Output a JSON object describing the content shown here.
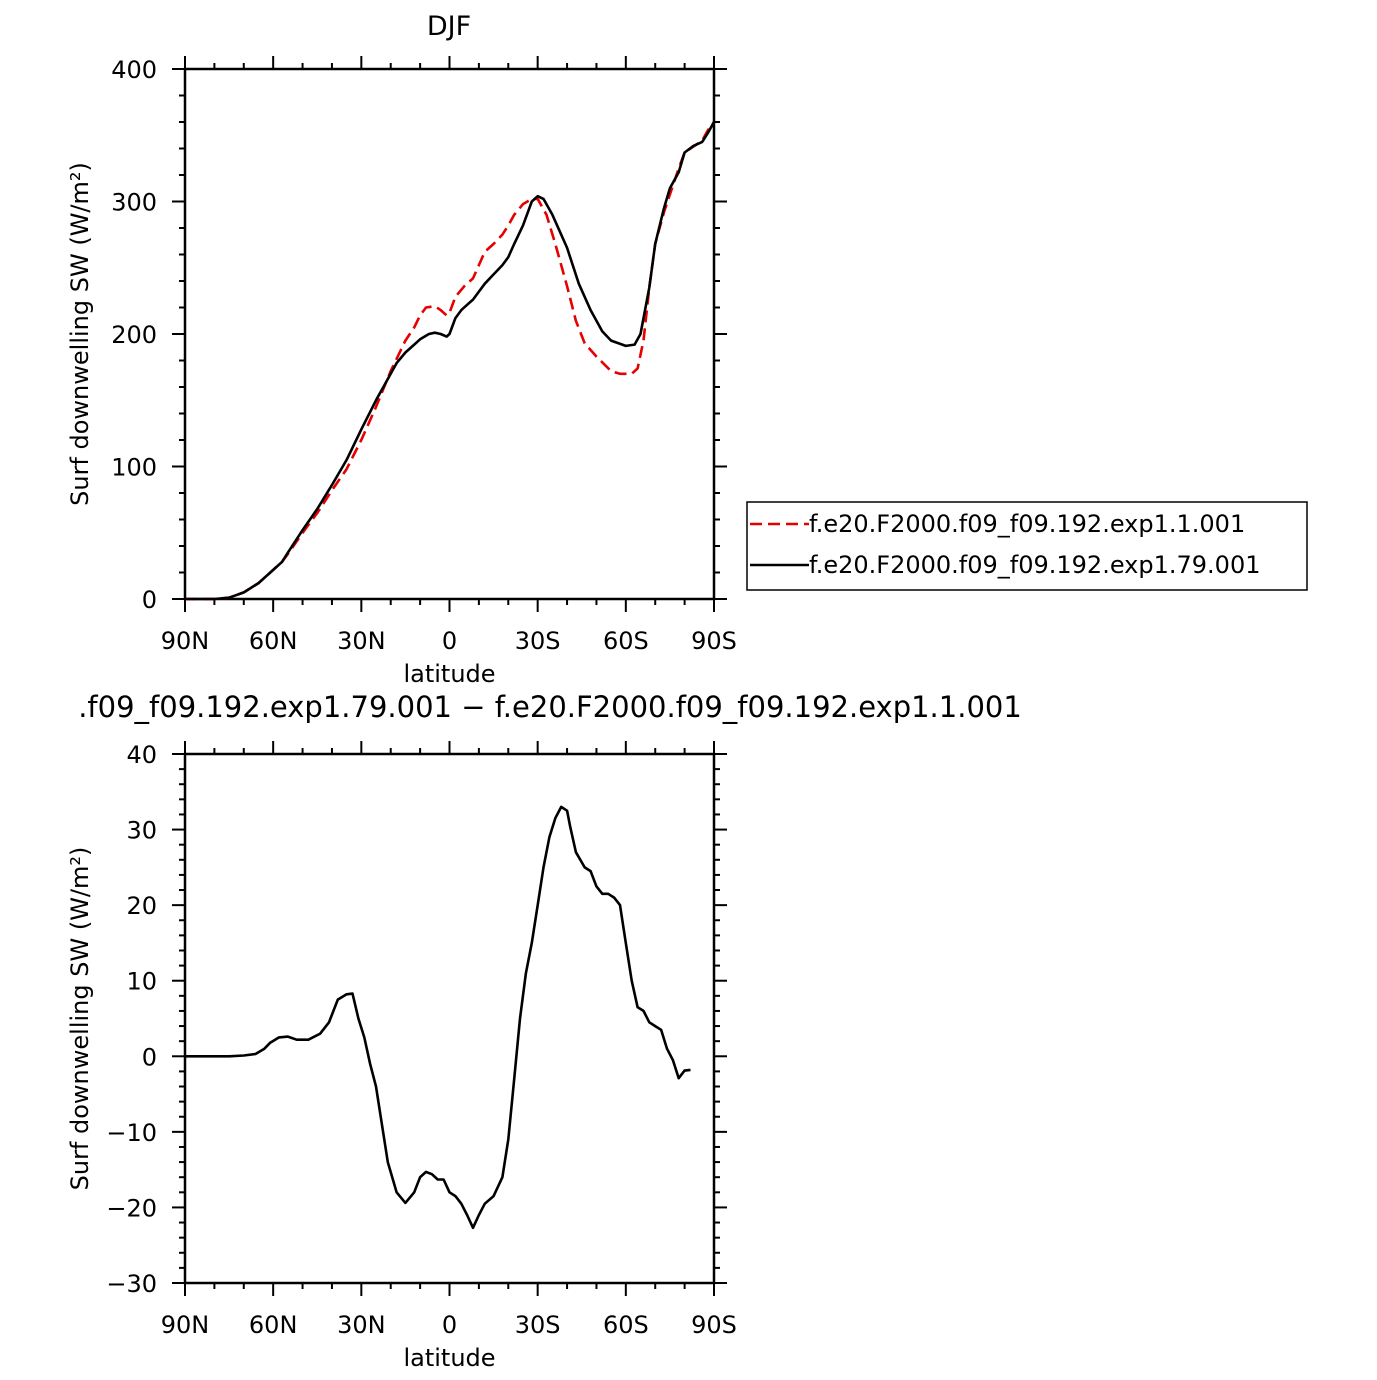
{
  "chart_data": [
    {
      "type": "line",
      "title": "DJF",
      "xlabel": "latitude",
      "ylabel": "Surf downwelling SW (W/m²)",
      "xlim": [
        -90,
        90
      ],
      "x_direction": "north-to-south (90N on left, 90S on right)",
      "ylim": [
        0,
        400
      ],
      "yticks": [
        0,
        100,
        200,
        300,
        400
      ],
      "xticks": [
        -90,
        -60,
        -30,
        0,
        30,
        60,
        90
      ],
      "xtick_labels": [
        "90N",
        "60N",
        "30N",
        "0",
        "30S",
        "60S",
        "90S"
      ],
      "legend_position": "right",
      "series": [
        {
          "name": "f.e20.F2000.f09_f09.192.exp1.1.001",
          "color": "#e60000",
          "style": "dashed",
          "points": [
            [
              -90,
              0
            ],
            [
              -80,
              0
            ],
            [
              -75,
              1
            ],
            [
              -70,
              5
            ],
            [
              -65,
              12
            ],
            [
              -60,
              22
            ],
            [
              -57,
              28
            ],
            [
              -55,
              34
            ],
            [
              -50,
              50
            ],
            [
              -45,
              65
            ],
            [
              -40,
              82
            ],
            [
              -35,
              98
            ],
            [
              -30,
              120
            ],
            [
              -25,
              145
            ],
            [
              -20,
              172
            ],
            [
              -15,
              195
            ],
            [
              -12,
              205
            ],
            [
              -10,
              214
            ],
            [
              -8,
              220
            ],
            [
              -5,
              221
            ],
            [
              -3,
              218
            ],
            [
              -1,
              214
            ],
            [
              0,
              216
            ],
            [
              2,
              228
            ],
            [
              5,
              236
            ],
            [
              8,
              242
            ],
            [
              10,
              252
            ],
            [
              12,
              262
            ],
            [
              15,
              268
            ],
            [
              18,
              275
            ],
            [
              20,
              282
            ],
            [
              22,
              290
            ],
            [
              25,
              298
            ],
            [
              28,
              302
            ],
            [
              30,
              302
            ],
            [
              33,
              290
            ],
            [
              36,
              268
            ],
            [
              40,
              236
            ],
            [
              43,
              210
            ],
            [
              46,
              193
            ],
            [
              50,
              183
            ],
            [
              55,
              172
            ],
            [
              58,
              170
            ],
            [
              62,
              170
            ],
            [
              64,
              174
            ],
            [
              66,
              195
            ],
            [
              68,
              235
            ],
            [
              70,
              268
            ],
            [
              73,
              292
            ],
            [
              76,
              312
            ],
            [
              78,
              325
            ],
            [
              80,
              337
            ],
            [
              84,
              343
            ],
            [
              86,
              346
            ],
            [
              88,
              354
            ],
            [
              90,
              360
            ]
          ]
        },
        {
          "name": "f.e20.F2000.f09_f09.192.exp1.79.001",
          "color": "#000000",
          "style": "solid",
          "points": [
            [
              -90,
              0
            ],
            [
              -80,
              0
            ],
            [
              -75,
              1
            ],
            [
              -70,
              5
            ],
            [
              -65,
              12
            ],
            [
              -60,
              22
            ],
            [
              -57,
              28
            ],
            [
              -55,
              35
            ],
            [
              -50,
              52
            ],
            [
              -45,
              68
            ],
            [
              -40,
              86
            ],
            [
              -35,
              105
            ],
            [
              -30,
              128
            ],
            [
              -25,
              150
            ],
            [
              -20,
              170
            ],
            [
              -18,
              178
            ],
            [
              -15,
              186
            ],
            [
              -12,
              192
            ],
            [
              -10,
              196
            ],
            [
              -7,
              200
            ],
            [
              -5,
              201
            ],
            [
              -3,
              200
            ],
            [
              -1,
              198
            ],
            [
              0,
              200
            ],
            [
              2,
              212
            ],
            [
              4,
              218
            ],
            [
              6,
              222
            ],
            [
              8,
              226
            ],
            [
              10,
              232
            ],
            [
              12,
              238
            ],
            [
              15,
              245
            ],
            [
              18,
              252
            ],
            [
              20,
              258
            ],
            [
              22,
              268
            ],
            [
              25,
              282
            ],
            [
              28,
              300
            ],
            [
              30,
              304
            ],
            [
              32,
              302
            ],
            [
              35,
              290
            ],
            [
              40,
              265
            ],
            [
              44,
              238
            ],
            [
              48,
              218
            ],
            [
              52,
              202
            ],
            [
              55,
              195
            ],
            [
              60,
              191
            ],
            [
              63,
              192
            ],
            [
              65,
              200
            ],
            [
              68,
              235
            ],
            [
              70,
              268
            ],
            [
              73,
              295
            ],
            [
              75,
              310
            ],
            [
              78,
              322
            ],
            [
              80,
              337
            ],
            [
              83,
              342
            ],
            [
              86,
              345
            ],
            [
              88,
              352
            ],
            [
              90,
              360
            ]
          ]
        }
      ]
    },
    {
      "type": "line",
      "title": ".f09_f09.192.exp1.79.001 − f.e20.F2000.f09_f09.192.exp1.1.001",
      "xlabel": "latitude",
      "ylabel": "Surf downwelling SW (W/m²)",
      "xlim": [
        -90,
        90
      ],
      "ylim": [
        -30,
        40
      ],
      "yticks": [
        -30,
        -20,
        -10,
        0,
        10,
        20,
        30,
        40
      ],
      "xticks": [
        -90,
        -60,
        -30,
        0,
        30,
        60,
        90
      ],
      "xtick_labels": [
        "90N",
        "60N",
        "30N",
        "0",
        "30S",
        "60S",
        "90S"
      ],
      "series": [
        {
          "color": "#000000",
          "style": "solid",
          "points": [
            [
              -90,
              0
            ],
            [
              -80,
              0
            ],
            [
              -75,
              0
            ],
            [
              -70,
              0.1
            ],
            [
              -66,
              0.3
            ],
            [
              -63,
              1
            ],
            [
              -61,
              1.8
            ],
            [
              -58,
              2.5
            ],
            [
              -55,
              2.6
            ],
            [
              -52,
              2.2
            ],
            [
              -48,
              2.2
            ],
            [
              -44,
              3
            ],
            [
              -41,
              4.5
            ],
            [
              -38,
              7.5
            ],
            [
              -35,
              8.2
            ],
            [
              -33,
              8.3
            ],
            [
              -31,
              5
            ],
            [
              -29,
              2.5
            ],
            [
              -27,
              -1
            ],
            [
              -25,
              -4
            ],
            [
              -23,
              -9
            ],
            [
              -21,
              -14
            ],
            [
              -18,
              -18
            ],
            [
              -15,
              -19.4
            ],
            [
              -12,
              -18
            ],
            [
              -10,
              -16
            ],
            [
              -8,
              -15.3
            ],
            [
              -6,
              -15.6
            ],
            [
              -4,
              -16.3
            ],
            [
              -2,
              -16.3
            ],
            [
              0,
              -18
            ],
            [
              2,
              -18.5
            ],
            [
              4,
              -19.5
            ],
            [
              6,
              -21
            ],
            [
              8,
              -22.7
            ],
            [
              10,
              -21
            ],
            [
              12,
              -19.5
            ],
            [
              15,
              -18.5
            ],
            [
              18,
              -16
            ],
            [
              20,
              -11
            ],
            [
              22,
              -3
            ],
            [
              24,
              5
            ],
            [
              26,
              11
            ],
            [
              28,
              15
            ],
            [
              30,
              20
            ],
            [
              32,
              25
            ],
            [
              34,
              29
            ],
            [
              36,
              31.5
            ],
            [
              38,
              33
            ],
            [
              40,
              32.5
            ],
            [
              41,
              30.5
            ],
            [
              43,
              27
            ],
            [
              46,
              25
            ],
            [
              48,
              24.5
            ],
            [
              50,
              22.5
            ],
            [
              52,
              21.5
            ],
            [
              54,
              21.5
            ],
            [
              56,
              21
            ],
            [
              58,
              20
            ],
            [
              60,
              15
            ],
            [
              62,
              10
            ],
            [
              64,
              6.5
            ],
            [
              66,
              6
            ],
            [
              68,
              4.5
            ],
            [
              70,
              4
            ],
            [
              72,
              3.5
            ],
            [
              74,
              1
            ],
            [
              76,
              -0.5
            ],
            [
              78,
              -2.9
            ],
            [
              80,
              -1.9
            ],
            [
              82,
              -1.8
            ]
          ]
        }
      ]
    }
  ]
}
